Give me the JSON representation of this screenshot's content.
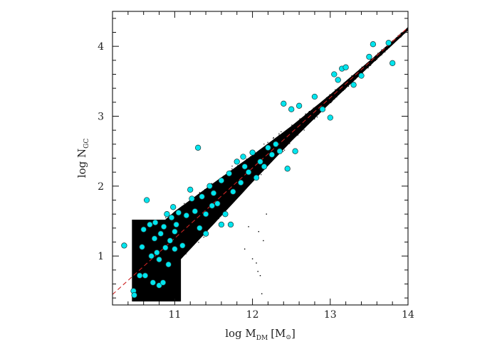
{
  "chart_data": {
    "type": "scatter",
    "title": "",
    "xlabel": {
      "prefix": "log M",
      "subscript": "DM",
      "unit": "[M",
      "unit_symbol": "⊙",
      "unit_close": "]"
    },
    "ylabel": {
      "prefix": "log N",
      "subscript": "GC"
    },
    "xlim": [
      10.2,
      14.0
    ],
    "ylim": [
      0.3,
      4.5
    ],
    "x_ticks": [
      11,
      12,
      13,
      14
    ],
    "x_tick_labels": [
      "11",
      "12",
      "13",
      "14"
    ],
    "y_ticks": [
      1,
      2,
      3,
      4
    ],
    "y_tick_labels": [
      "1",
      "2",
      "3",
      "4"
    ],
    "grid": false,
    "legend": "none",
    "colors": {
      "model_points": "#000000",
      "observed_points": "#00e5ee",
      "observed_edge": "#1a3a3a",
      "fit_line": "#cc2222"
    },
    "fit_line": {
      "style": "dashed",
      "x": [
        10.2,
        14.0
      ],
      "y": [
        0.45,
        4.27
      ]
    },
    "model_cloud": {
      "description_ref": "dense black simulated points",
      "ridge": [
        [
          10.4,
          0.62
        ],
        [
          11.0,
          1.25
        ],
        [
          11.5,
          1.75
        ],
        [
          12.0,
          2.25
        ],
        [
          12.5,
          2.75
        ],
        [
          13.0,
          3.25
        ],
        [
          13.5,
          3.75
        ],
        [
          14.0,
          4.25
        ]
      ],
      "halfwidth": [
        [
          10.4,
          0.55
        ],
        [
          11.0,
          0.5
        ],
        [
          11.5,
          0.38
        ],
        [
          12.0,
          0.25
        ],
        [
          12.5,
          0.14
        ],
        [
          13.0,
          0.08
        ],
        [
          13.5,
          0.05
        ],
        [
          14.0,
          0.03
        ]
      ],
      "block": {
        "x": [
          10.45,
          11.08
        ],
        "y": [
          0.35,
          1.52
        ]
      },
      "outliers": [
        [
          11.9,
          1.1
        ],
        [
          12.0,
          0.96
        ],
        [
          12.05,
          0.9
        ],
        [
          12.07,
          0.78
        ],
        [
          12.1,
          0.72
        ],
        [
          12.12,
          0.46
        ],
        [
          12.14,
          1.22
        ],
        [
          12.08,
          1.35
        ],
        [
          11.95,
          1.42
        ],
        [
          12.18,
          1.6
        ]
      ]
    },
    "series": [
      {
        "name": "",
        "x": [
          10.35,
          10.47,
          10.48,
          10.55,
          10.58,
          10.6,
          10.62,
          10.64,
          10.68,
          10.7,
          10.72,
          10.74,
          10.75,
          10.77,
          10.8,
          10.82,
          10.85,
          10.86,
          10.88,
          10.9,
          10.92,
          10.94,
          10.96,
          10.98,
          11.0,
          11.02,
          11.05,
          11.1,
          11.15,
          11.2,
          11.22,
          11.26,
          11.3,
          11.32,
          11.35,
          11.4,
          11.45,
          11.48,
          11.5,
          11.55,
          11.6,
          11.65,
          11.7,
          11.72,
          11.75,
          11.8,
          11.85,
          11.88,
          11.9,
          11.95,
          12.0,
          12.05,
          12.1,
          12.15,
          12.2,
          12.25,
          12.3,
          12.35,
          12.4,
          12.45,
          12.5,
          12.55,
          12.6,
          12.8,
          12.9,
          13.0,
          13.05,
          13.1,
          13.15,
          13.2,
          13.3,
          13.4,
          13.5,
          13.55,
          13.75,
          13.8,
          11.4,
          11.6,
          11.0,
          10.8
        ],
        "y": [
          1.15,
          0.5,
          0.44,
          0.72,
          1.13,
          1.38,
          0.72,
          1.8,
          1.45,
          1.0,
          0.62,
          1.25,
          1.48,
          1.05,
          0.58,
          1.32,
          0.62,
          1.42,
          1.12,
          1.6,
          0.88,
          1.22,
          1.55,
          1.7,
          1.1,
          1.45,
          1.62,
          1.15,
          1.58,
          1.95,
          1.82,
          1.64,
          2.55,
          1.4,
          1.85,
          1.6,
          2.0,
          1.72,
          1.9,
          1.75,
          2.08,
          1.6,
          2.18,
          1.45,
          1.92,
          2.35,
          2.05,
          2.42,
          2.28,
          2.2,
          2.48,
          2.12,
          2.35,
          2.28,
          2.55,
          2.45,
          2.6,
          2.5,
          3.18,
          2.25,
          3.1,
          2.5,
          3.15,
          3.28,
          3.1,
          2.98,
          3.6,
          3.52,
          3.68,
          3.7,
          3.45,
          3.58,
          3.85,
          4.03,
          4.05,
          3.76,
          1.32,
          1.45,
          1.35,
          0.95
        ]
      }
    ]
  }
}
